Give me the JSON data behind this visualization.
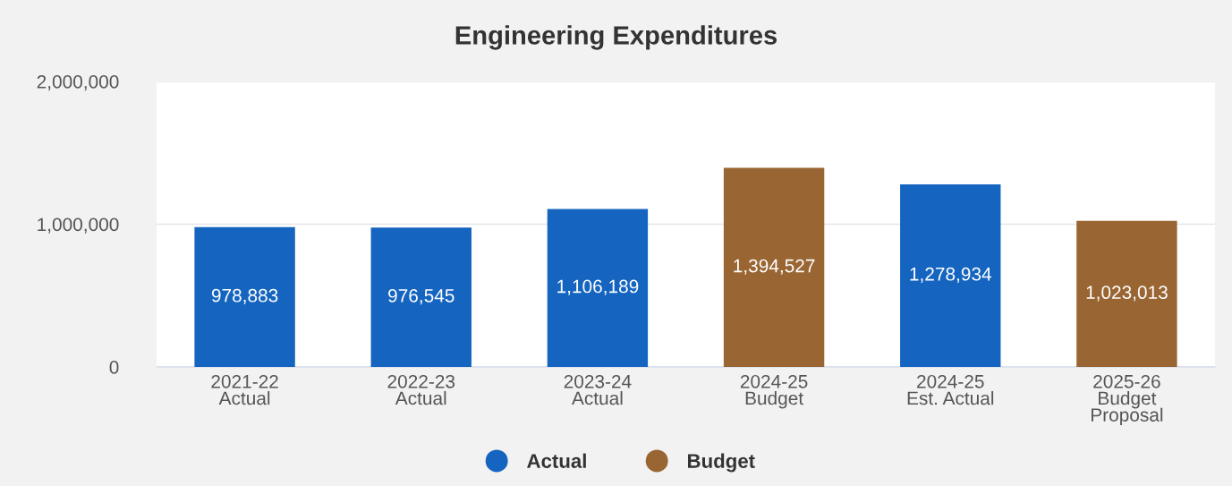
{
  "chart_data": {
    "type": "bar",
    "title": "Engineering Expenditures",
    "categories": [
      "2021-22\nActual",
      "2022-23\nActual",
      "2023-24\nActual",
      "2024-25\nBudget",
      "2024-25\nEst. Actual",
      "2025-26\nBudget\nProposal"
    ],
    "series": [
      {
        "name": "Actual",
        "color": "#1565c0",
        "values": [
          978883,
          976545,
          1106189,
          null,
          1278934,
          null
        ],
        "value_labels": [
          "978,883",
          "976,545",
          "1,106,189",
          null,
          "1,278,934",
          null
        ]
      },
      {
        "name": "Budget",
        "color": "#996633",
        "values": [
          null,
          null,
          null,
          1394527,
          null,
          1023013
        ],
        "value_labels": [
          null,
          null,
          null,
          "1,394,527",
          null,
          "1,023,013"
        ]
      }
    ],
    "ylim": [
      0,
      2000000
    ],
    "yticks": [
      {
        "value": 0,
        "label": "0"
      },
      {
        "value": 1000000,
        "label": "1,000,000"
      },
      {
        "value": 2000000,
        "label": "2,000,000"
      }
    ],
    "grid": "y",
    "legend": "bottom"
  }
}
